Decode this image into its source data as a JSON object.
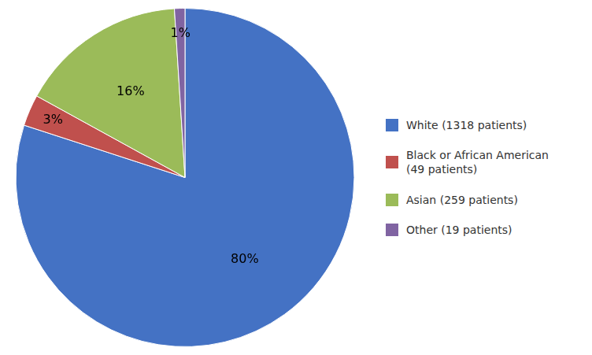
{
  "chart_data": {
    "type": "pie",
    "categories": [
      "White (1318 patients)",
      "Black or African American\n(49 patients)",
      "Asian (259 patients)",
      "Other (19 patients)"
    ],
    "values": [
      80,
      3,
      16,
      1
    ],
    "value_labels": [
      "80%",
      "3%",
      "16%",
      "1%"
    ],
    "data_labels": true,
    "colors": [
      "#4472C4",
      "#C0504D",
      "#9BBB59",
      "#8064A2"
    ],
    "legend": "right"
  }
}
